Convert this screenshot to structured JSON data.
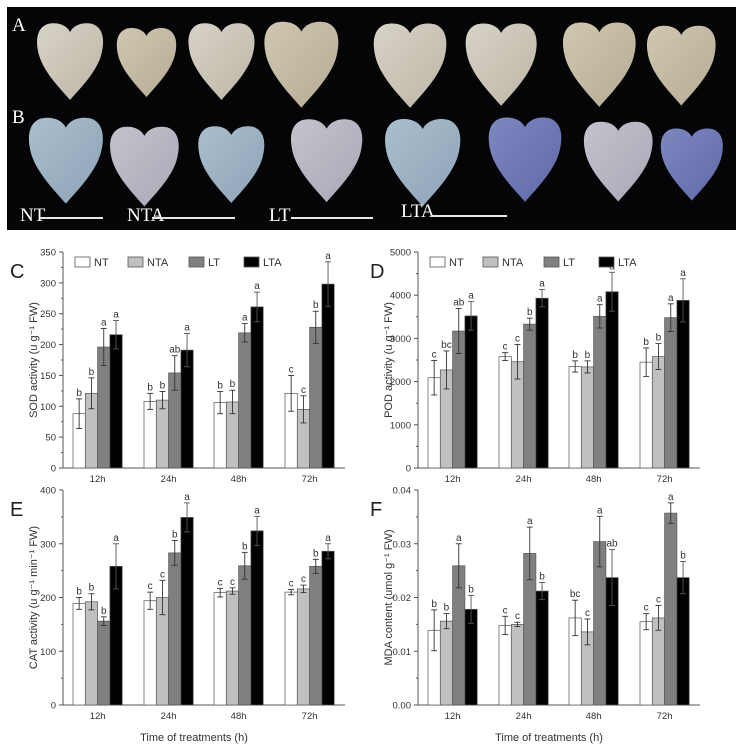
{
  "photo_panel": {
    "row_labels": [
      "A",
      "B"
    ],
    "group_labels": [
      "NT",
      "NTA",
      "LT",
      "LTA"
    ]
  },
  "legend": {
    "entries": [
      {
        "label": "NT",
        "color": "#ffffff"
      },
      {
        "label": "NTA",
        "color": "#c0c0c0"
      },
      {
        "label": "LT",
        "color": "#808080"
      },
      {
        "label": "LTA",
        "color": "#000000"
      }
    ]
  },
  "shared_xlabel": "Time of treatments (h)",
  "chart_data": [
    {
      "panel": "C",
      "type": "bar",
      "title": "",
      "ylabel": "SOD activity (u g⁻¹ FW)",
      "xlabel": "",
      "categories": [
        "12h",
        "24h",
        "48h",
        "72h"
      ],
      "ylim": [
        0,
        350
      ],
      "yticks": [
        0,
        50,
        100,
        150,
        200,
        250,
        300,
        350
      ],
      "series": [
        {
          "name": "NT",
          "values": [
            88,
            108,
            106,
            121
          ],
          "errors": [
            24,
            13,
            18,
            29
          ],
          "letters": [
            "b",
            "b",
            "b",
            "c"
          ]
        },
        {
          "name": "NTA",
          "values": [
            121,
            110,
            107,
            95
          ],
          "errors": [
            25,
            14,
            19,
            22
          ],
          "letters": [
            "b",
            "b",
            "b",
            "c"
          ]
        },
        {
          "name": "LT",
          "values": [
            196,
            154,
            219,
            228
          ],
          "errors": [
            30,
            28,
            15,
            26
          ],
          "letters": [
            "a",
            "ab",
            "a",
            "b"
          ]
        },
        {
          "name": "LTA",
          "values": [
            216,
            191,
            261,
            298
          ],
          "errors": [
            23,
            27,
            24,
            36
          ],
          "letters": [
            "a",
            "a",
            "a",
            "a"
          ]
        }
      ],
      "legend_position": "top-left"
    },
    {
      "panel": "D",
      "type": "bar",
      "title": "",
      "ylabel": "POD activity (u g⁻¹ FW)",
      "xlabel": "",
      "categories": [
        "12h",
        "24h",
        "48h",
        "72h"
      ],
      "ylim": [
        0,
        5000
      ],
      "yticks": [
        0,
        1000,
        2000,
        3000,
        4000,
        5000
      ],
      "series": [
        {
          "name": "NT",
          "values": [
            2090,
            2580,
            2350,
            2450
          ],
          "errors": [
            400,
            90,
            130,
            330
          ],
          "letters": [
            "c",
            "c",
            "b",
            "b"
          ]
        },
        {
          "name": "NTA",
          "values": [
            2270,
            2460,
            2340,
            2580
          ],
          "errors": [
            440,
            400,
            140,
            300
          ],
          "letters": [
            "bc",
            "c",
            "b",
            "b"
          ]
        },
        {
          "name": "LT",
          "values": [
            3170,
            3330,
            3510,
            3480
          ],
          "errors": [
            520,
            140,
            270,
            320
          ],
          "letters": [
            "ab",
            "b",
            "a",
            "a"
          ]
        },
        {
          "name": "LTA",
          "values": [
            3520,
            3930,
            4080,
            3880
          ],
          "errors": [
            330,
            200,
            450,
            500
          ],
          "letters": [
            "a",
            "a",
            "a",
            "a"
          ]
        }
      ],
      "legend_position": "top-left"
    },
    {
      "panel": "E",
      "type": "bar",
      "title": "",
      "ylabel": "CAT activity (u g⁻¹ min⁻¹ FW)",
      "xlabel": "Time of treatments (h)",
      "categories": [
        "12h",
        "24h",
        "48h",
        "72h"
      ],
      "ylim": [
        0,
        400
      ],
      "yticks": [
        0,
        100,
        200,
        300,
        400
      ],
      "series": [
        {
          "name": "NT",
          "values": [
            189,
            194,
            209,
            210
          ],
          "errors": [
            11,
            16,
            8,
            5
          ],
          "letters": [
            "b",
            "c",
            "c",
            "c"
          ]
        },
        {
          "name": "NTA",
          "values": [
            192,
            200,
            212,
            216
          ],
          "errors": [
            15,
            32,
            6,
            7
          ],
          "letters": [
            "b",
            "c",
            "c",
            "c"
          ]
        },
        {
          "name": "LT",
          "values": [
            156,
            283,
            259,
            258
          ],
          "errors": [
            8,
            23,
            25,
            13
          ],
          "letters": [
            "b",
            "b",
            "b",
            "b"
          ]
        },
        {
          "name": "LTA",
          "values": [
            258,
            349,
            324,
            286
          ],
          "errors": [
            42,
            27,
            27,
            14
          ],
          "letters": [
            "a",
            "a",
            "a",
            "a"
          ]
        }
      ]
    },
    {
      "panel": "F",
      "type": "bar",
      "title": "",
      "ylabel": "MDA content (umol g⁻¹ FW)",
      "xlabel": "Time of treatments (h)",
      "categories": [
        "12h",
        "24h",
        "48h",
        "72h"
      ],
      "ylim": [
        0,
        0.04
      ],
      "yticks": [
        0.0,
        0.01,
        0.02,
        0.03,
        0.04
      ],
      "ytick_labels": [
        "0.00",
        "0.01",
        "0.02",
        "0.03",
        "0.04"
      ],
      "series": [
        {
          "name": "NT",
          "values": [
            0.0139,
            0.0148,
            0.0162,
            0.0155
          ],
          "errors": [
            0.0038,
            0.0017,
            0.0033,
            0.0015
          ],
          "letters": [
            "b",
            "c",
            "bc",
            "c"
          ]
        },
        {
          "name": "NTA",
          "values": [
            0.0156,
            0.015,
            0.0136,
            0.0162
          ],
          "errors": [
            0.0014,
            0.0004,
            0.0024,
            0.0023
          ],
          "letters": [
            "b",
            "c",
            "c",
            "c"
          ]
        },
        {
          "name": "LT",
          "values": [
            0.0259,
            0.0282,
            0.0304,
            0.0357
          ],
          "errors": [
            0.0041,
            0.0049,
            0.0047,
            0.0019
          ],
          "letters": [
            "a",
            "a",
            "a",
            "a"
          ]
        },
        {
          "name": "LTA",
          "values": [
            0.0178,
            0.0212,
            0.0237,
            0.0237
          ],
          "errors": [
            0.0026,
            0.0016,
            0.0052,
            0.003
          ],
          "letters": [
            "b",
            "b",
            "ab",
            "b"
          ]
        }
      ]
    }
  ]
}
